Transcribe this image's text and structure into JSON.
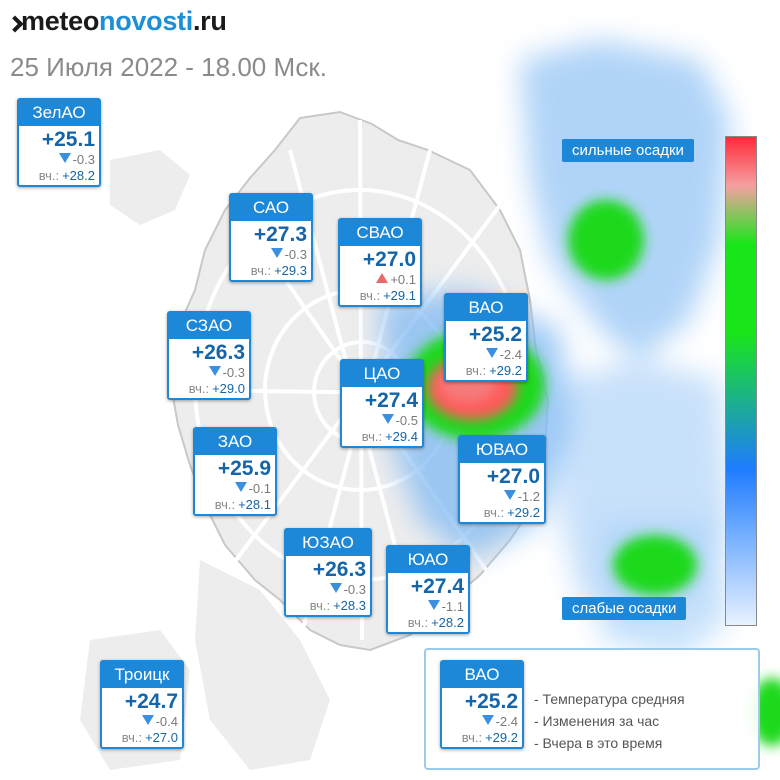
{
  "header": {
    "logo": {
      "prefix": "meteo",
      "highlight": "novosti",
      "suffix": ".ru"
    },
    "datetime": "25 Июля 2022 - 18.00 Мск."
  },
  "districts": [
    {
      "name": "ЗелАО",
      "temp": "+25.1",
      "trend": "down",
      "change": "-0.3",
      "yesterday_label": "вч.:",
      "yesterday": "+28.2"
    },
    {
      "name": "САО",
      "temp": "+27.3",
      "trend": "down",
      "change": "-0.3",
      "yesterday_label": "вч.:",
      "yesterday": "+29.3"
    },
    {
      "name": "СВАО",
      "temp": "+27.0",
      "trend": "up",
      "change": "+0.1",
      "yesterday_label": "вч.:",
      "yesterday": "+29.1"
    },
    {
      "name": "ВАО",
      "temp": "+25.2",
      "trend": "down",
      "change": "-2.4",
      "yesterday_label": "вч.:",
      "yesterday": "+29.2"
    },
    {
      "name": "СЗАО",
      "temp": "+26.3",
      "trend": "down",
      "change": "-0.3",
      "yesterday_label": "вч.:",
      "yesterday": "+29.0"
    },
    {
      "name": "ЦАО",
      "temp": "+27.4",
      "trend": "down",
      "change": "-0.5",
      "yesterday_label": "вч.:",
      "yesterday": "+29.4"
    },
    {
      "name": "ЗАО",
      "temp": "+25.9",
      "trend": "down",
      "change": "-0.1",
      "yesterday_label": "вч.:",
      "yesterday": "+28.1"
    },
    {
      "name": "ЮВАО",
      "temp": "+27.0",
      "trend": "down",
      "change": "-1.2",
      "yesterday_label": "вч.:",
      "yesterday": "+29.2"
    },
    {
      "name": "ЮЗАО",
      "temp": "+26.3",
      "trend": "down",
      "change": "-0.3",
      "yesterday_label": "вч.:",
      "yesterday": "+28.3"
    },
    {
      "name": "ЮАО",
      "temp": "+27.4",
      "trend": "down",
      "change": "-1.1",
      "yesterday_label": "вч.:",
      "yesterday": "+28.2"
    },
    {
      "name": "Троицк",
      "temp": "+24.7",
      "trend": "down",
      "change": "-0.4",
      "yesterday_label": "вч.:",
      "yesterday": "+27.0"
    }
  ],
  "precipitation_scale": {
    "heavy_label": "сильные осадки",
    "light_label": "слабые осадки",
    "colors": [
      "#ff2a3a",
      "#f5a0a0",
      "#19e619",
      "#1e7cff",
      "#e8f2ff"
    ]
  },
  "legend": {
    "sample": {
      "name": "ВАО",
      "temp": "+25.2",
      "trend": "down",
      "change": "-2.4",
      "yesterday_label": "вч.:",
      "yesterday": "+29.2"
    },
    "items": [
      "- Температура средняя",
      "- Изменения за час",
      "- Вчера в это время"
    ]
  },
  "colors": {
    "accent": "#1e88d8",
    "temperature_text": "#1565a8",
    "trend_down": "#3a8fe0",
    "trend_up": "#e86b6b"
  }
}
